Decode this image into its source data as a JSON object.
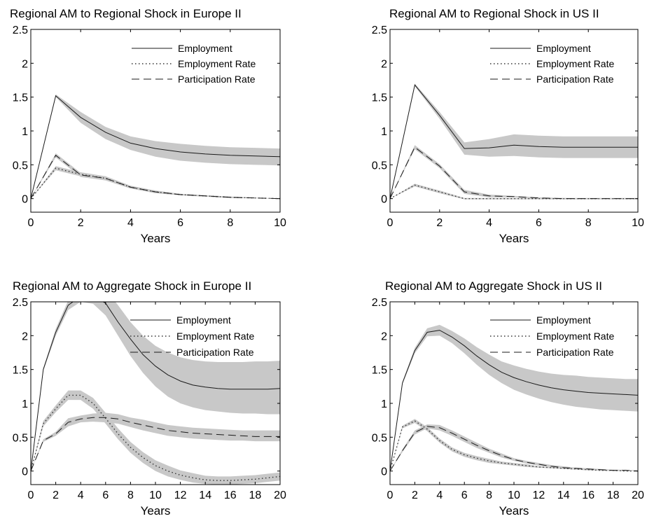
{
  "chart_data": [
    {
      "type": "line",
      "title": "Regional AM to Regional Shock in Europe II",
      "xlabel": "Years",
      "ylabel": "",
      "xlim": [
        0,
        10
      ],
      "ylim": [
        -0.2,
        2.5
      ],
      "xticks": [
        "0",
        "2",
        "4",
        "6",
        "8",
        "10"
      ],
      "yticks": [
        "0",
        "0.5",
        "1",
        "1.5",
        "2",
        "2.5"
      ],
      "grid": false,
      "legend_position": "top-right",
      "x": [
        0,
        1,
        2,
        3,
        4,
        5,
        6,
        7,
        8,
        9,
        10
      ],
      "series": [
        {
          "name": "Employment",
          "style": "solid",
          "values": [
            0,
            1.52,
            1.2,
            0.98,
            0.82,
            0.74,
            0.69,
            0.66,
            0.64,
            0.63,
            0.62
          ],
          "band_lower": [
            0,
            1.5,
            1.12,
            0.88,
            0.72,
            0.62,
            0.56,
            0.53,
            0.51,
            0.5,
            0.49
          ],
          "band_upper": [
            0,
            1.54,
            1.28,
            1.06,
            0.92,
            0.85,
            0.81,
            0.78,
            0.76,
            0.75,
            0.74
          ]
        },
        {
          "name": "Employment Rate",
          "style": "dotted",
          "values": [
            0,
            0.45,
            0.36,
            0.3,
            0.17,
            0.1,
            0.06,
            0.04,
            0.02,
            0.01,
            0
          ],
          "band_lower": [
            0,
            0.42,
            0.33,
            0.27,
            0.15,
            0.08,
            0.05,
            0.03,
            0.01,
            0.005,
            0
          ],
          "band_upper": [
            0,
            0.48,
            0.39,
            0.33,
            0.19,
            0.12,
            0.07,
            0.05,
            0.03,
            0.015,
            0
          ]
        },
        {
          "name": "Participation Rate",
          "style": "dashed",
          "values": [
            0,
            0.64,
            0.35,
            0.3,
            0.17,
            0.1,
            0.06,
            0.04,
            0.02,
            0.01,
            0
          ],
          "band_lower": [
            0,
            0.61,
            0.32,
            0.27,
            0.15,
            0.08,
            0.05,
            0.03,
            0.01,
            0.005,
            0
          ],
          "band_upper": [
            0,
            0.67,
            0.38,
            0.33,
            0.19,
            0.12,
            0.07,
            0.05,
            0.03,
            0.015,
            0
          ]
        }
      ]
    },
    {
      "type": "line",
      "title": "Regional AM to Regional Shock in US II",
      "xlabel": "Years",
      "ylabel": "",
      "xlim": [
        0,
        10
      ],
      "ylim": [
        -0.2,
        2.5
      ],
      "xticks": [
        "0",
        "2",
        "4",
        "6",
        "8",
        "10"
      ],
      "yticks": [
        "0",
        "0.5",
        "1",
        "1.5",
        "2",
        "2.5"
      ],
      "grid": false,
      "legend_position": "top-right",
      "x": [
        0,
        1,
        2,
        3,
        4,
        5,
        6,
        7,
        8,
        9,
        10
      ],
      "series": [
        {
          "name": "Employment",
          "style": "solid",
          "values": [
            0,
            1.68,
            1.23,
            0.74,
            0.75,
            0.79,
            0.77,
            0.76,
            0.76,
            0.76,
            0.76
          ],
          "band_lower": [
            0,
            1.66,
            1.18,
            0.65,
            0.62,
            0.63,
            0.61,
            0.6,
            0.6,
            0.6,
            0.6
          ],
          "band_upper": [
            0,
            1.7,
            1.28,
            0.83,
            0.88,
            0.95,
            0.93,
            0.92,
            0.92,
            0.92,
            0.92
          ]
        },
        {
          "name": "Employment Rate",
          "style": "dotted",
          "values": [
            0,
            0.2,
            0.1,
            0,
            0,
            0,
            0,
            0,
            0,
            0,
            0
          ],
          "band_lower": [
            0,
            0.18,
            0.08,
            -0.01,
            -0.01,
            -0.01,
            -0.01,
            -0.01,
            -0.01,
            -0.01,
            -0.01
          ],
          "band_upper": [
            0,
            0.22,
            0.12,
            0.01,
            0.01,
            0.01,
            0.01,
            0.01,
            0.01,
            0.01,
            0.01
          ]
        },
        {
          "name": "Participation Rate",
          "style": "dashed",
          "values": [
            0,
            0.76,
            0.48,
            0.1,
            0.04,
            0.03,
            0.01,
            0,
            0,
            0,
            0
          ],
          "band_lower": [
            0,
            0.73,
            0.45,
            0.07,
            0.02,
            0.02,
            0,
            0,
            0,
            0,
            0
          ],
          "band_upper": [
            0,
            0.79,
            0.51,
            0.13,
            0.06,
            0.04,
            0.02,
            0.01,
            0,
            0,
            0
          ]
        }
      ]
    },
    {
      "type": "line",
      "title": "Regional AM to Aggregate Shock in Europe II",
      "xlabel": "Years",
      "ylabel": "",
      "xlim": [
        0,
        20
      ],
      "ylim": [
        -0.2,
        2.5
      ],
      "xticks": [
        "0",
        "2",
        "4",
        "6",
        "8",
        "10",
        "12",
        "14",
        "16",
        "18",
        "20"
      ],
      "yticks": [
        "0",
        "0.5",
        "1",
        "1.5",
        "2",
        "2.5"
      ],
      "grid": false,
      "legend_position": "top-right",
      "x": [
        0,
        1,
        2,
        3,
        4,
        5,
        6,
        7,
        8,
        9,
        10,
        11,
        12,
        13,
        14,
        15,
        16,
        17,
        18,
        19,
        20
      ],
      "series": [
        {
          "name": "Employment",
          "style": "solid",
          "values": [
            0,
            1.5,
            2.05,
            2.45,
            2.58,
            2.58,
            2.48,
            2.2,
            1.95,
            1.72,
            1.55,
            1.42,
            1.33,
            1.27,
            1.24,
            1.22,
            1.21,
            1.21,
            1.21,
            1.21,
            1.22
          ],
          "band_lower": [
            0,
            1.48,
            2.0,
            2.38,
            2.5,
            2.47,
            2.3,
            2.0,
            1.7,
            1.45,
            1.25,
            1.1,
            1.0,
            0.94,
            0.9,
            0.88,
            0.86,
            0.85,
            0.85,
            0.84,
            0.84
          ],
          "band_upper": [
            0,
            1.52,
            2.1,
            2.52,
            2.7,
            2.72,
            2.68,
            2.45,
            2.2,
            2.0,
            1.85,
            1.75,
            1.68,
            1.64,
            1.62,
            1.61,
            1.61,
            1.61,
            1.62,
            1.62,
            1.63
          ]
        },
        {
          "name": "Employment Rate",
          "style": "dotted",
          "values": [
            0,
            0.7,
            0.92,
            1.12,
            1.12,
            1.0,
            0.78,
            0.55,
            0.35,
            0.2,
            0.08,
            0,
            -0.06,
            -0.1,
            -0.13,
            -0.14,
            -0.14,
            -0.13,
            -0.12,
            -0.1,
            -0.08
          ],
          "band_lower": [
            0,
            0.66,
            0.87,
            1.05,
            1.05,
            0.92,
            0.7,
            0.47,
            0.27,
            0.12,
            0.0,
            -0.08,
            -0.13,
            -0.17,
            -0.19,
            -0.2,
            -0.2,
            -0.19,
            -0.18,
            -0.16,
            -0.14
          ],
          "band_upper": [
            0,
            0.74,
            0.97,
            1.19,
            1.19,
            1.08,
            0.86,
            0.63,
            0.43,
            0.28,
            0.16,
            0.08,
            0.01,
            -0.03,
            -0.07,
            -0.08,
            -0.08,
            -0.07,
            -0.06,
            -0.04,
            -0.02
          ]
        },
        {
          "name": "Participation Rate",
          "style": "dashed",
          "values": [
            0,
            0.45,
            0.55,
            0.72,
            0.77,
            0.79,
            0.79,
            0.77,
            0.72,
            0.68,
            0.64,
            0.6,
            0.58,
            0.56,
            0.55,
            0.54,
            0.53,
            0.52,
            0.51,
            0.51,
            0.51
          ],
          "band_lower": [
            0,
            0.43,
            0.52,
            0.66,
            0.72,
            0.73,
            0.72,
            0.7,
            0.65,
            0.6,
            0.56,
            0.52,
            0.5,
            0.48,
            0.47,
            0.46,
            0.45,
            0.45,
            0.44,
            0.44,
            0.44
          ],
          "band_upper": [
            0,
            0.47,
            0.58,
            0.78,
            0.82,
            0.85,
            0.86,
            0.84,
            0.79,
            0.76,
            0.72,
            0.68,
            0.66,
            0.64,
            0.63,
            0.62,
            0.61,
            0.6,
            0.6,
            0.6,
            0.6
          ]
        }
      ]
    },
    {
      "type": "line",
      "title": "Regional AM to Aggregate Shock in US II",
      "xlabel": "Years",
      "ylabel": "",
      "xlim": [
        0,
        20
      ],
      "ylim": [
        -0.2,
        2.5
      ],
      "xticks": [
        "0",
        "2",
        "4",
        "6",
        "8",
        "10",
        "12",
        "14",
        "16",
        "18",
        "20"
      ],
      "yticks": [
        "0",
        "0.5",
        "1",
        "1.5",
        "2",
        "2.5"
      ],
      "grid": false,
      "legend_position": "top-right",
      "x": [
        0,
        1,
        2,
        3,
        4,
        5,
        6,
        7,
        8,
        9,
        10,
        11,
        12,
        13,
        14,
        15,
        16,
        17,
        18,
        19,
        20
      ],
      "series": [
        {
          "name": "Employment",
          "style": "solid",
          "values": [
            0,
            1.3,
            1.78,
            2.05,
            2.08,
            1.98,
            1.85,
            1.7,
            1.57,
            1.46,
            1.38,
            1.32,
            1.27,
            1.23,
            1.2,
            1.18,
            1.16,
            1.15,
            1.14,
            1.13,
            1.12
          ],
          "band_lower": [
            0,
            1.28,
            1.74,
            1.99,
            2.0,
            1.89,
            1.74,
            1.57,
            1.42,
            1.3,
            1.2,
            1.13,
            1.07,
            1.02,
            0.98,
            0.95,
            0.93,
            0.91,
            0.9,
            0.89,
            0.88
          ],
          "band_upper": [
            0,
            1.32,
            1.82,
            2.11,
            2.16,
            2.07,
            1.96,
            1.83,
            1.72,
            1.62,
            1.56,
            1.51,
            1.47,
            1.44,
            1.42,
            1.41,
            1.39,
            1.38,
            1.37,
            1.36,
            1.36
          ]
        },
        {
          "name": "Employment Rate",
          "style": "dotted",
          "values": [
            0,
            0.65,
            0.74,
            0.62,
            0.45,
            0.32,
            0.24,
            0.19,
            0.15,
            0.12,
            0.1,
            0.08,
            0.06,
            0.05,
            0.04,
            0.03,
            0.02,
            0.01,
            0.01,
            0,
            0
          ],
          "band_lower": [
            0,
            0.63,
            0.71,
            0.59,
            0.42,
            0.29,
            0.21,
            0.16,
            0.12,
            0.1,
            0.08,
            0.06,
            0.05,
            0.04,
            0.03,
            0.02,
            0.01,
            0.005,
            0,
            0,
            0
          ],
          "band_upper": [
            0,
            0.67,
            0.77,
            0.65,
            0.48,
            0.35,
            0.27,
            0.22,
            0.18,
            0.14,
            0.12,
            0.1,
            0.07,
            0.06,
            0.05,
            0.04,
            0.03,
            0.02,
            0.015,
            0.01,
            0
          ]
        },
        {
          "name": "Participation Rate",
          "style": "dashed",
          "values": [
            0,
            0.3,
            0.57,
            0.66,
            0.64,
            0.56,
            0.47,
            0.38,
            0.3,
            0.23,
            0.17,
            0.13,
            0.1,
            0.07,
            0.05,
            0.04,
            0.03,
            0.02,
            0.01,
            0.01,
            0
          ],
          "band_lower": [
            0,
            0.28,
            0.54,
            0.63,
            0.6,
            0.52,
            0.43,
            0.34,
            0.27,
            0.2,
            0.15,
            0.11,
            0.08,
            0.06,
            0.04,
            0.03,
            0.02,
            0.01,
            0,
            0,
            0
          ],
          "band_upper": [
            0,
            0.32,
            0.6,
            0.69,
            0.68,
            0.6,
            0.51,
            0.42,
            0.33,
            0.26,
            0.19,
            0.15,
            0.12,
            0.09,
            0.07,
            0.05,
            0.04,
            0.03,
            0.02,
            0.02,
            0.01
          ]
        }
      ]
    }
  ]
}
